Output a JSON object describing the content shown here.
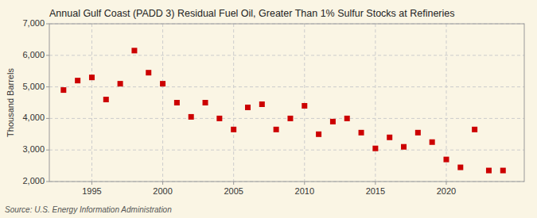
{
  "chart_data": {
    "type": "scatter",
    "title": "Annual Gulf Coast (PADD 3) Residual Fuel Oil, Greater Than 1% Sulfur Stocks at Refineries",
    "ylabel": "Thousand Barrels",
    "source": "Source: U.S. Energy Information Administration",
    "x": [
      1993,
      1994,
      1995,
      1996,
      1997,
      1998,
      1999,
      2000,
      2001,
      2002,
      2003,
      2004,
      2005,
      2006,
      2007,
      2008,
      2009,
      2010,
      2011,
      2012,
      2013,
      2014,
      2015,
      2016,
      2017,
      2018,
      2019,
      2020,
      2021,
      2022,
      2023,
      2024
    ],
    "values": [
      4900,
      5200,
      5300,
      4600,
      5100,
      6150,
      5450,
      5100,
      4500,
      4050,
      4500,
      4000,
      3650,
      4350,
      4450,
      3650,
      4000,
      4400,
      3500,
      3900,
      4000,
      3550,
      3050,
      3400,
      3100,
      3550,
      3250,
      2700,
      2450,
      3650,
      2350,
      2350
    ],
    "color": "#cc0000",
    "marker": "square",
    "xlim": [
      1992,
      2025.5
    ],
    "xticks": [
      1995,
      2000,
      2005,
      2010,
      2015,
      2020
    ],
    "ylim": [
      2000,
      7000
    ],
    "yticks": [
      {
        "value": 2000,
        "label": "2,000"
      },
      {
        "value": 3000,
        "label": "3,000"
      },
      {
        "value": 4000,
        "label": "4,000"
      },
      {
        "value": 5000,
        "label": "5,000"
      },
      {
        "value": 6000,
        "label": "6,000"
      },
      {
        "value": 7000,
        "label": "7,000"
      }
    ],
    "grid": true
  }
}
